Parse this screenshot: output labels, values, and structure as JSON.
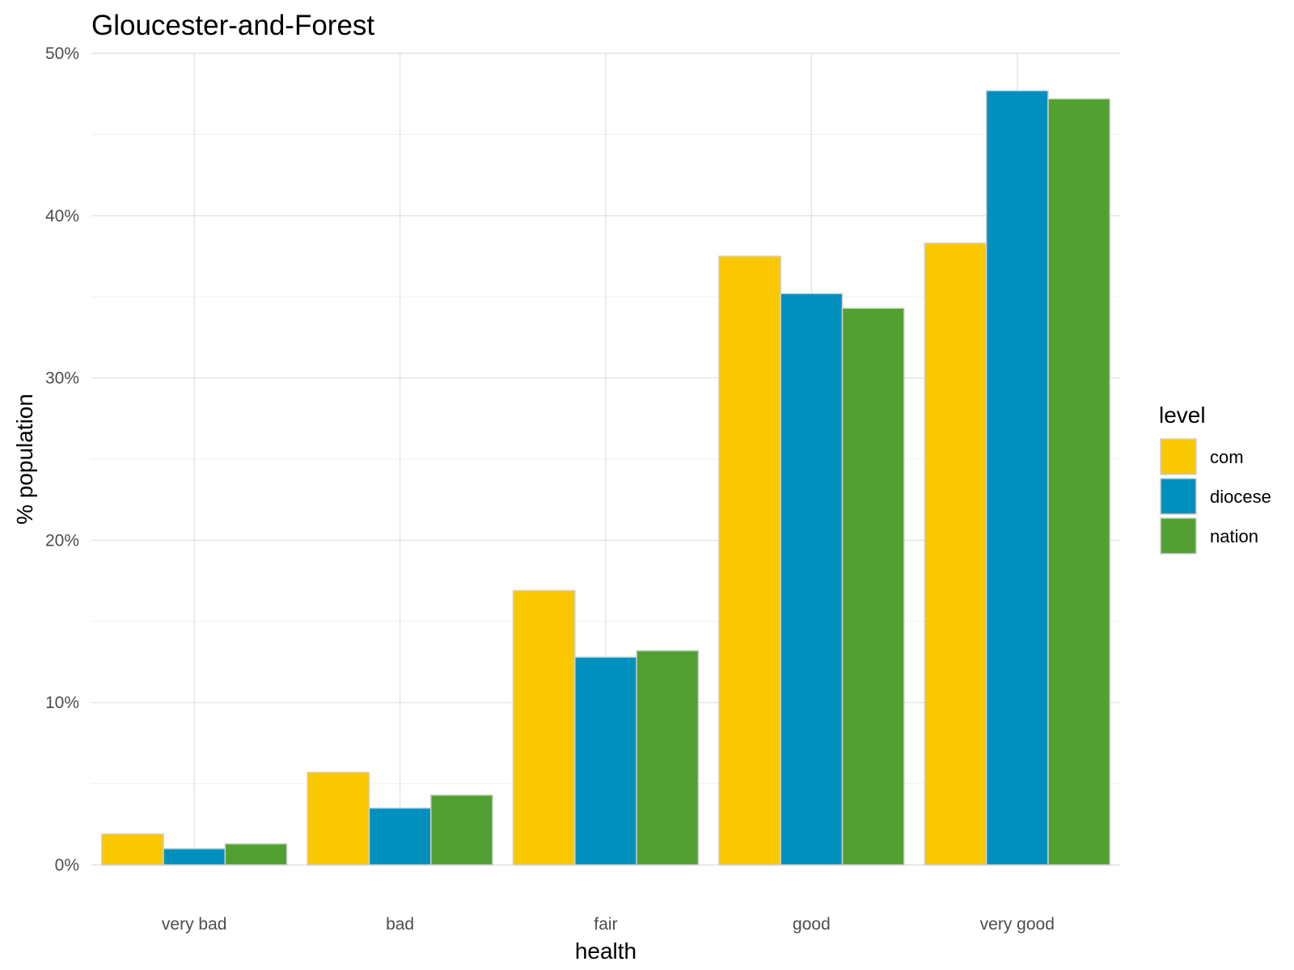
{
  "chart_data": {
    "type": "bar",
    "title": "Gloucester-and-Forest",
    "xlabel": "health",
    "ylabel": "% population",
    "categories": [
      "very bad",
      "bad",
      "fair",
      "good",
      "very good"
    ],
    "series": [
      {
        "name": "com",
        "color": "#F9C800",
        "values": [
          1.9,
          5.7,
          16.9,
          37.5,
          38.3
        ]
      },
      {
        "name": "diocese",
        "color": "#0090BE",
        "values": [
          1.0,
          3.5,
          12.8,
          35.2,
          47.7
        ]
      },
      {
        "name": "nation",
        "color": "#52A032",
        "values": [
          1.3,
          4.3,
          13.2,
          34.3,
          47.2
        ]
      }
    ],
    "ylim": [
      0,
      50
    ],
    "yticks": [
      0,
      10,
      20,
      30,
      40,
      50
    ],
    "ytick_labels": [
      "0%",
      "10%",
      "20%",
      "30%",
      "40%",
      "50%"
    ],
    "grid": true,
    "legend": {
      "title": "level",
      "position": "right"
    }
  }
}
